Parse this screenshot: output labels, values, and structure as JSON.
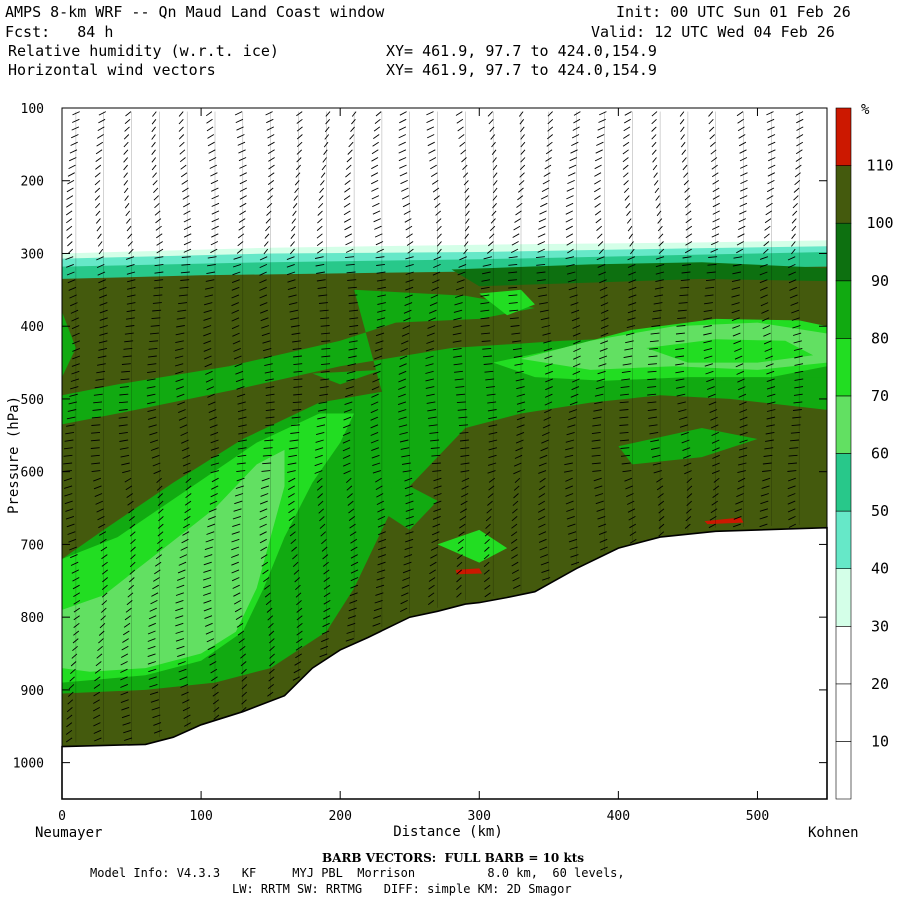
{
  "header": {
    "title_left": "AMPS 8-km WRF -- Qn Maud Land Coast window",
    "init": "Init: 00 UTC Sun 01 Feb 26",
    "fcst": "Fcst:   84 h",
    "valid": "Valid: 12 UTC Wed 04 Feb 26",
    "field1": "Relative humidity (w.r.t. ice)",
    "field1_xy": "XY= 461.9, 97.7 to 424.0,154.9",
    "field2": "Horizontal wind vectors",
    "field2_xy": "XY= 461.9, 97.7 to 424.0,154.9"
  },
  "footer": {
    "barb_note": "BARB VECTORS:  FULL BARB = 10 kts",
    "model_info": "Model Info: V4.3.3   KF     MYJ PBL  Morrison          8.0 km,  60 levels,",
    "model_info2": "LW: RRTM SW: RRTMG   DIFF: simple KM: 2D Smagor"
  },
  "chart_data": {
    "type": "cross-section contour",
    "ylabel": "Pressure (hPa)",
    "xlabel": "Distance (km)",
    "x_left_label": "Neumayer",
    "x_right_label": "Kohnen",
    "xlim": [
      0,
      550
    ],
    "ylim": [
      1050,
      100
    ],
    "x_ticks": [
      0,
      100,
      200,
      300,
      400,
      500
    ],
    "y_ticks": [
      100,
      200,
      300,
      400,
      500,
      600,
      700,
      800,
      900,
      1000
    ],
    "colorbar": {
      "unit": "%",
      "levels": [
        10,
        20,
        30,
        40,
        50,
        60,
        70,
        80,
        90,
        100,
        110
      ],
      "colors": [
        "#ffffff",
        "#ffffff",
        "#ffffff",
        "#d4ffe8",
        "#66e8c8",
        "#28c88a",
        "#62e062",
        "#22dd22",
        "#11aa11",
        "#0d7010",
        "#445a0d",
        "#cc1800"
      ]
    },
    "terrain_pressure": [
      [
        0,
        978
      ],
      [
        60,
        975
      ],
      [
        80,
        965
      ],
      [
        100,
        948
      ],
      [
        130,
        930
      ],
      [
        160,
        908
      ],
      [
        180,
        870
      ],
      [
        200,
        845
      ],
      [
        220,
        828
      ],
      [
        250,
        800
      ],
      [
        270,
        792
      ],
      [
        290,
        782
      ],
      [
        300,
        780
      ],
      [
        320,
        773
      ],
      [
        340,
        765
      ],
      [
        370,
        733
      ],
      [
        400,
        705
      ],
      [
        430,
        690
      ],
      [
        470,
        682
      ],
      [
        550,
        677
      ]
    ],
    "barb_columns_km": [
      10,
      30,
      50,
      70,
      90,
      110,
      130,
      150,
      170,
      190,
      210,
      230,
      250,
      270,
      290,
      310,
      330,
      350,
      370,
      390,
      410,
      430,
      450,
      470,
      490,
      510,
      530
    ]
  }
}
